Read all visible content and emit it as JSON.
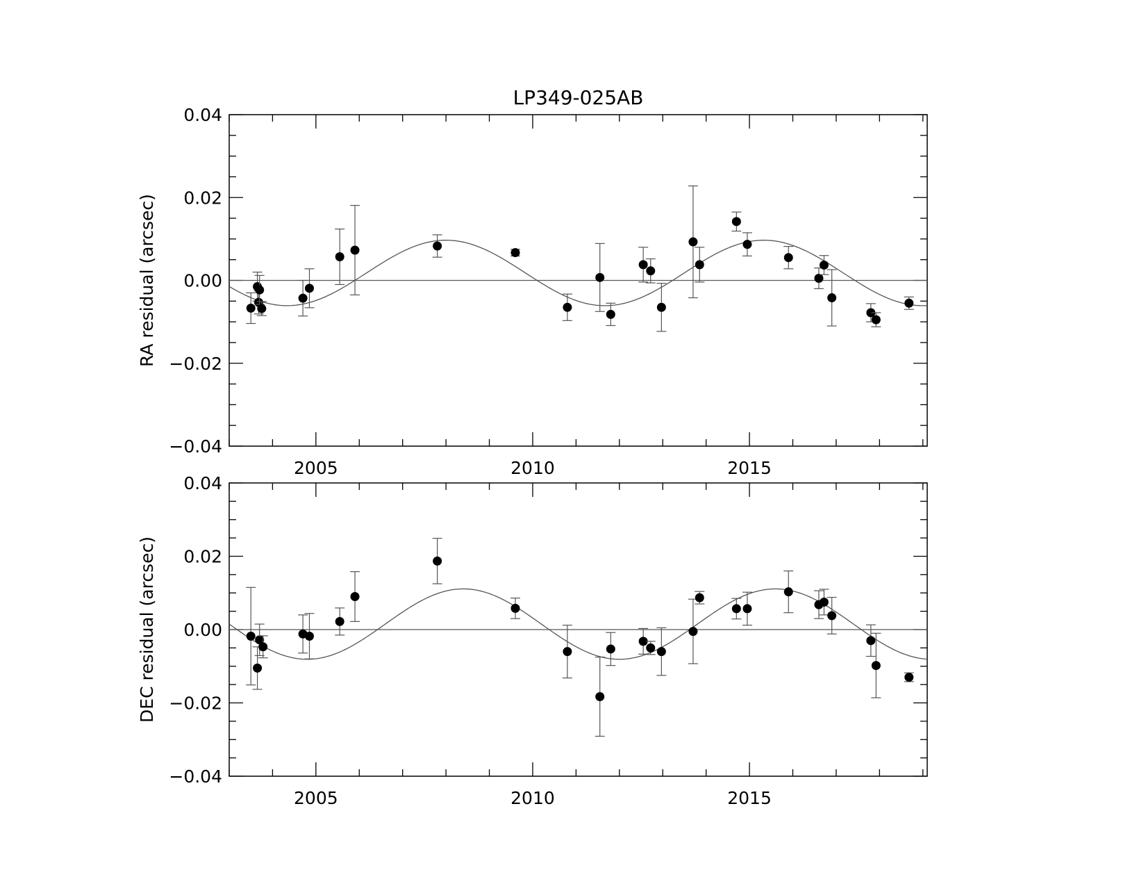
{
  "title": "LP349-025AB",
  "chart_data": [
    {
      "type": "scatter",
      "panel": "top",
      "title": "LP349-025AB",
      "xlabel": "",
      "ylabel": "RA residual (arcsec)",
      "xlim": [
        2003.0,
        2019.1
      ],
      "ylim": [
        -0.04,
        0.04
      ],
      "xticks": [
        2005,
        2010,
        2015
      ],
      "xtick_labels": [
        "2005",
        "2010",
        "2015"
      ],
      "yticks": [
        -0.04,
        -0.02,
        0.0,
        0.02,
        0.04
      ],
      "ytick_labels": [
        "−0.04",
        "−0.02",
        "0.00",
        "0.02",
        "0.04"
      ],
      "zero_line": true,
      "grid": false,
      "legend": "none",
      "points": [
        {
          "x": 2003.5,
          "y": -0.0067,
          "err": 0.0037
        },
        {
          "x": 2003.65,
          "y": -0.0015,
          "err": 0.0035
        },
        {
          "x": 2003.68,
          "y": -0.0053,
          "err": 0.0028
        },
        {
          "x": 2003.7,
          "y": -0.0023,
          "err": 0.0035
        },
        {
          "x": 2003.75,
          "y": -0.0068,
          "err": 0.0017
        },
        {
          "x": 2004.7,
          "y": -0.0043,
          "err": 0.0043
        },
        {
          "x": 2004.85,
          "y": -0.0019,
          "err": 0.0047
        },
        {
          "x": 2005.55,
          "y": 0.0057,
          "err": 0.0067
        },
        {
          "x": 2005.9,
          "y": 0.0073,
          "err": 0.0108
        },
        {
          "x": 2007.8,
          "y": 0.0083,
          "err": 0.0027
        },
        {
          "x": 2009.6,
          "y": 0.0067,
          "err": 0.0008
        },
        {
          "x": 2010.8,
          "y": -0.0065,
          "err": 0.0032
        },
        {
          "x": 2011.55,
          "y": 0.0007,
          "err": 0.0082
        },
        {
          "x": 2011.8,
          "y": -0.0082,
          "err": 0.0027
        },
        {
          "x": 2012.55,
          "y": 0.0038,
          "err": 0.0042
        },
        {
          "x": 2012.72,
          "y": 0.0023,
          "err": 0.0029
        },
        {
          "x": 2012.97,
          "y": -0.0065,
          "err": 0.0058
        },
        {
          "x": 2013.7,
          "y": 0.0093,
          "err": 0.0135
        },
        {
          "x": 2013.85,
          "y": 0.0038,
          "err": 0.0042
        },
        {
          "x": 2014.7,
          "y": 0.0142,
          "err": 0.0023
        },
        {
          "x": 2014.95,
          "y": 0.0087,
          "err": 0.0028
        },
        {
          "x": 2015.9,
          "y": 0.0055,
          "err": 0.0027
        },
        {
          "x": 2016.6,
          "y": 0.0005,
          "err": 0.0025
        },
        {
          "x": 2016.72,
          "y": 0.0037,
          "err": 0.0023
        },
        {
          "x": 2016.9,
          "y": -0.0042,
          "err": 0.0068
        },
        {
          "x": 2017.8,
          "y": -0.0078,
          "err": 0.0022
        },
        {
          "x": 2017.92,
          "y": -0.0095,
          "err": 0.0017
        },
        {
          "x": 2018.68,
          "y": -0.0055,
          "err": 0.0015
        }
      ],
      "model": {
        "type": "sinusoid",
        "amplitude": 0.0079,
        "offset": 0.0018,
        "period": 7.33,
        "peak_year": 2008.0
      }
    },
    {
      "type": "scatter",
      "panel": "bottom",
      "title": "",
      "xlabel": "",
      "ylabel": "DEC residual (arcsec)",
      "xlim": [
        2003.0,
        2019.1
      ],
      "ylim": [
        -0.04,
        0.04
      ],
      "xticks": [
        2005,
        2010,
        2015
      ],
      "xtick_labels": [
        "2005",
        "2010",
        "2015"
      ],
      "yticks": [
        -0.04,
        -0.02,
        0.0,
        0.02,
        0.04
      ],
      "ytick_labels": [
        "−0.04",
        "−0.02",
        "0.00",
        "0.02",
        "0.04"
      ],
      "zero_line": true,
      "grid": false,
      "legend": "none",
      "points": [
        {
          "x": 2003.5,
          "y": -0.0018,
          "err": 0.0133
        },
        {
          "x": 2003.65,
          "y": -0.0105,
          "err": 0.0058
        },
        {
          "x": 2003.7,
          "y": -0.0028,
          "err": 0.0043
        },
        {
          "x": 2003.78,
          "y": -0.0047,
          "err": 0.003
        },
        {
          "x": 2004.7,
          "y": -0.0012,
          "err": 0.0052
        },
        {
          "x": 2004.85,
          "y": -0.0018,
          "err": 0.0062
        },
        {
          "x": 2005.55,
          "y": 0.0022,
          "err": 0.0037
        },
        {
          "x": 2005.9,
          "y": 0.009,
          "err": 0.0068
        },
        {
          "x": 2007.8,
          "y": 0.0187,
          "err": 0.0062
        },
        {
          "x": 2009.6,
          "y": 0.0058,
          "err": 0.0028
        },
        {
          "x": 2010.8,
          "y": -0.006,
          "err": 0.0072
        },
        {
          "x": 2011.55,
          "y": -0.0183,
          "err": 0.0108
        },
        {
          "x": 2011.8,
          "y": -0.0053,
          "err": 0.0045
        },
        {
          "x": 2012.55,
          "y": -0.0032,
          "err": 0.0035
        },
        {
          "x": 2012.72,
          "y": -0.005,
          "err": 0.0018
        },
        {
          "x": 2012.97,
          "y": -0.006,
          "err": 0.0065
        },
        {
          "x": 2013.7,
          "y": -0.0005,
          "err": 0.0088
        },
        {
          "x": 2013.85,
          "y": 0.0087,
          "err": 0.0017
        },
        {
          "x": 2014.7,
          "y": 0.0057,
          "err": 0.0028
        },
        {
          "x": 2014.95,
          "y": 0.0057,
          "err": 0.0045
        },
        {
          "x": 2015.9,
          "y": 0.0103,
          "err": 0.0057
        },
        {
          "x": 2016.6,
          "y": 0.0068,
          "err": 0.0038
        },
        {
          "x": 2016.72,
          "y": 0.0075,
          "err": 0.0035
        },
        {
          "x": 2016.9,
          "y": 0.0038,
          "err": 0.005
        },
        {
          "x": 2017.8,
          "y": -0.003,
          "err": 0.0043
        },
        {
          "x": 2017.92,
          "y": -0.0098,
          "err": 0.0088
        },
        {
          "x": 2018.68,
          "y": -0.013,
          "err": 0.0012
        }
      ],
      "model": {
        "type": "sinusoid",
        "amplitude": 0.0096,
        "offset": 0.0015,
        "period": 7.2,
        "peak_year": 2008.4
      }
    }
  ]
}
